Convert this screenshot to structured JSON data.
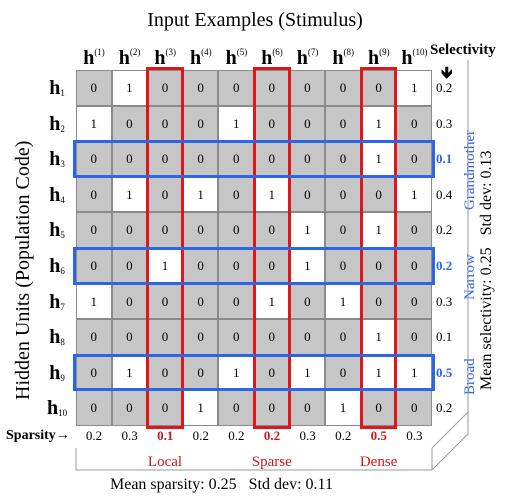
{
  "title": "Input Examples (Stimulus)",
  "y_axis_label": "Hidden Units (Population Code)",
  "selectivity_label": "Selectivity",
  "selectivity_arrow": "🡻",
  "sparsity_label": "Sparsity",
  "sparsity_arrow": "→",
  "col_heads": [
    {
      "base": "h",
      "sup": "(1)"
    },
    {
      "base": "h",
      "sup": "(2)"
    },
    {
      "base": "h",
      "sup": "(3)"
    },
    {
      "base": "h",
      "sup": "(4)"
    },
    {
      "base": "h",
      "sup": "(5)"
    },
    {
      "base": "h",
      "sup": "(6)"
    },
    {
      "base": "h",
      "sup": "(7)"
    },
    {
      "base": "h",
      "sup": "(8)"
    },
    {
      "base": "h",
      "sup": "(9)"
    },
    {
      "base": "h",
      "sup": "(10)"
    }
  ],
  "row_heads": [
    {
      "base": "h",
      "sub": "1"
    },
    {
      "base": "h",
      "sub": "2"
    },
    {
      "base": "h",
      "sub": "3"
    },
    {
      "base": "h",
      "sub": "4"
    },
    {
      "base": "h",
      "sub": "5"
    },
    {
      "base": "h",
      "sub": "6"
    },
    {
      "base": "h",
      "sub": "7"
    },
    {
      "base": "h",
      "sub": "8"
    },
    {
      "base": "h",
      "sub": "9"
    },
    {
      "base": "h",
      "sub": "10"
    }
  ],
  "matrix": [
    [
      0,
      1,
      0,
      0,
      0,
      0,
      0,
      0,
      0,
      1
    ],
    [
      1,
      0,
      0,
      0,
      1,
      0,
      0,
      0,
      1,
      0
    ],
    [
      0,
      0,
      0,
      0,
      0,
      0,
      0,
      0,
      1,
      0
    ],
    [
      0,
      1,
      0,
      1,
      0,
      1,
      0,
      0,
      0,
      1
    ],
    [
      0,
      0,
      0,
      0,
      0,
      0,
      1,
      0,
      1,
      0
    ],
    [
      0,
      0,
      1,
      0,
      0,
      0,
      1,
      0,
      0,
      0
    ],
    [
      1,
      0,
      0,
      0,
      0,
      1,
      0,
      1,
      0,
      0
    ],
    [
      0,
      0,
      0,
      0,
      0,
      0,
      0,
      0,
      1,
      0
    ],
    [
      0,
      1,
      0,
      0,
      1,
      0,
      1,
      0,
      1,
      1
    ],
    [
      0,
      0,
      0,
      1,
      0,
      0,
      0,
      1,
      0,
      0
    ]
  ],
  "selectivity": [
    "0.2",
    "0.3",
    "0.1",
    "0.4",
    "0.2",
    "0.2",
    "0.3",
    "0.1",
    "0.5",
    "0.2"
  ],
  "highlighted_rows": [
    2,
    5,
    8
  ],
  "sparsity": [
    "0.2",
    "0.3",
    "0.1",
    "0.2",
    "0.2",
    "0.2",
    "0.3",
    "0.2",
    "0.5",
    "0.3"
  ],
  "highlighted_cols": [
    2,
    5,
    8
  ],
  "col_groups": [
    "Local",
    "Sparse",
    "Dense"
  ],
  "row_groups": [
    "Grandmother",
    "Narrow",
    "Broad"
  ],
  "mean_sparsity_text": "Mean sparsity: 0.25   Std dev: 0.11",
  "mean_selectivity_text": "Mean selectivity: 0.25   Std dev: 0.13",
  "colors": {
    "active": "#ffffff",
    "inactive": "#c6c6c6",
    "column_highlight": "#e0161b",
    "row_highlight": "#2c66e8",
    "column_group_text": "#d0141a"
  }
}
